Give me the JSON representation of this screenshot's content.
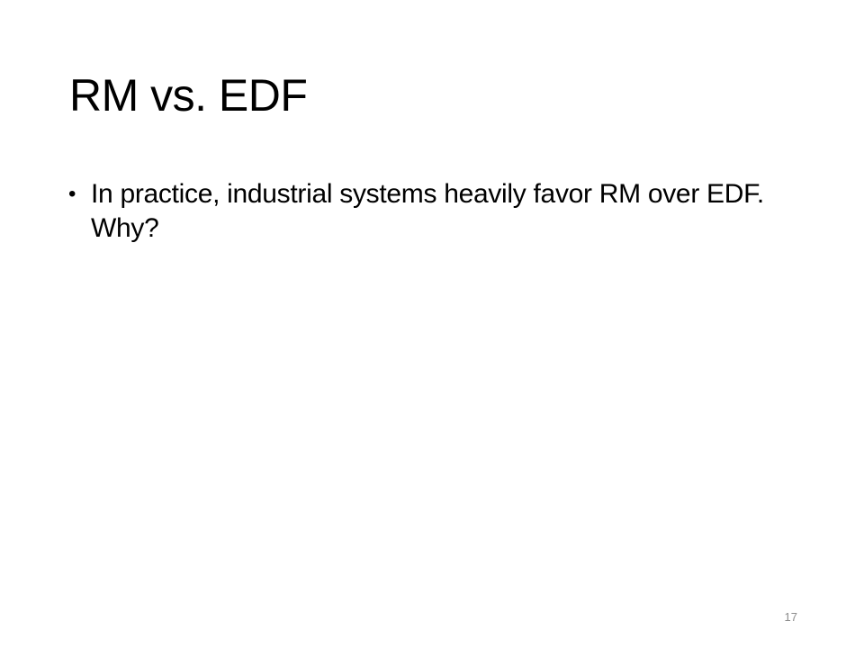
{
  "slide": {
    "title": "RM vs. EDF",
    "bullets": [
      {
        "marker": "•",
        "text": "In practice, industrial systems heavily favor RM over EDF. Why?"
      }
    ],
    "slide_number": "17"
  }
}
